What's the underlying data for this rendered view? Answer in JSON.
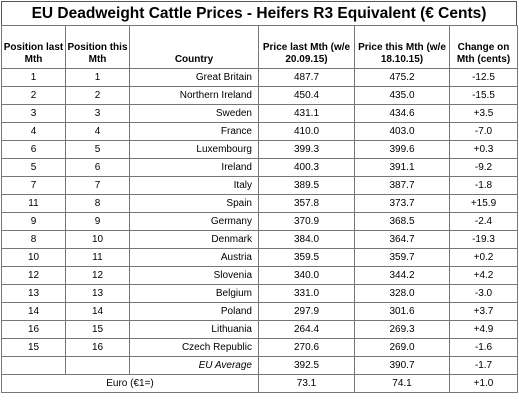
{
  "title": "EU Deadweight Cattle Prices - Heifers R3 Equivalent (€ Cents)",
  "headers": {
    "pos_last": "Position last Mth",
    "pos_this": "Position this Mth",
    "country": "Country",
    "price_last": "Price last Mth (w/e 20.09.15)",
    "price_this": "Price this Mth (w/e 18.10.15)",
    "change": "Change on Mth (cents)"
  },
  "rows": [
    {
      "pos_last": "1",
      "pos_this": "1",
      "country": "Great Britain",
      "price_last": "487.7",
      "price_this": "475.2",
      "change": "-12.5"
    },
    {
      "pos_last": "2",
      "pos_this": "2",
      "country": "Northern Ireland",
      "price_last": "450.4",
      "price_this": "435.0",
      "change": "-15.5"
    },
    {
      "pos_last": "3",
      "pos_this": "3",
      "country": "Sweden",
      "price_last": "431.1",
      "price_this": "434.6",
      "change": "+3.5"
    },
    {
      "pos_last": "4",
      "pos_this": "4",
      "country": "France",
      "price_last": "410.0",
      "price_this": "403.0",
      "change": "-7.0"
    },
    {
      "pos_last": "6",
      "pos_this": "5",
      "country": "Luxembourg",
      "price_last": "399.3",
      "price_this": "399.6",
      "change": "+0.3"
    },
    {
      "pos_last": "5",
      "pos_this": "6",
      "country": "Ireland",
      "price_last": "400.3",
      "price_this": "391.1",
      "change": "-9.2"
    },
    {
      "pos_last": "7",
      "pos_this": "7",
      "country": "Italy",
      "price_last": "389.5",
      "price_this": "387.7",
      "change": "-1.8"
    },
    {
      "pos_last": "11",
      "pos_this": "8",
      "country": "Spain",
      "price_last": "357.8",
      "price_this": "373.7",
      "change": "+15.9"
    },
    {
      "pos_last": "9",
      "pos_this": "9",
      "country": "Germany",
      "price_last": "370.9",
      "price_this": "368.5",
      "change": "-2.4"
    },
    {
      "pos_last": "8",
      "pos_this": "10",
      "country": "Denmark",
      "price_last": "384.0",
      "price_this": "364.7",
      "change": "-19.3"
    },
    {
      "pos_last": "10",
      "pos_this": "11",
      "country": "Austria",
      "price_last": "359.5",
      "price_this": "359.7",
      "change": "+0.2"
    },
    {
      "pos_last": "12",
      "pos_this": "12",
      "country": "Slovenia",
      "price_last": "340.0",
      "price_this": "344.2",
      "change": "+4.2"
    },
    {
      "pos_last": "13",
      "pos_this": "13",
      "country": "Belgium",
      "price_last": "331.0",
      "price_this": "328.0",
      "change": "-3.0"
    },
    {
      "pos_last": "14",
      "pos_this": "14",
      "country": "Poland",
      "price_last": "297.9",
      "price_this": "301.6",
      "change": "+3.7"
    },
    {
      "pos_last": "16",
      "pos_this": "15",
      "country": "Lithuania",
      "price_last": "264.4",
      "price_this": "269.3",
      "change": "+4.9"
    },
    {
      "pos_last": "15",
      "pos_this": "16",
      "country": "Czech Republic",
      "price_last": "270.6",
      "price_this": "269.0",
      "change": "-1.6"
    }
  ],
  "eu_average": {
    "label": "EU Average",
    "price_last": "392.5",
    "price_this": "390.7",
    "change": "-1.7"
  },
  "euro": {
    "label": "Euro (€1=)",
    "price_last": "73.1",
    "price_this": "74.1",
    "change": "+1.0"
  }
}
